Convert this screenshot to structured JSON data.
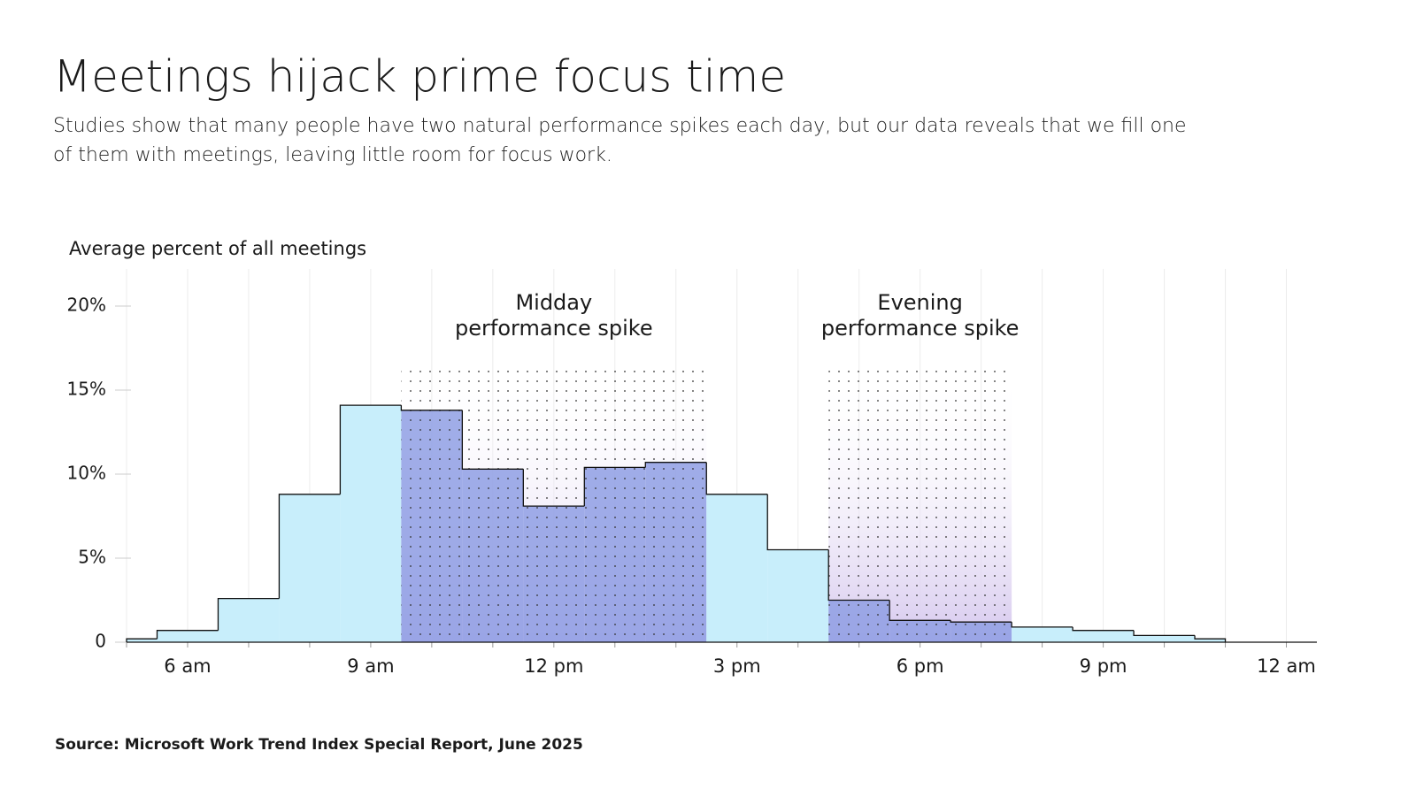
{
  "chart_data": {
    "type": "histogram",
    "title": "Meetings hijack prime focus time",
    "subtitle": "Studies show that many people have two natural performance spikes each day, but our data reveals that we fill one of them with meetings, leaving little room for focus work.",
    "y_label": "Average percent of all meetings",
    "source": "Source: Microsoft Work Trend Index Special Report, June 2025",
    "bins": [
      5,
      5.5,
      6.5,
      7.5,
      8.5,
      9.5,
      10.5,
      11.5,
      12.5,
      13.5,
      14.5,
      15.5,
      16.5,
      17.5,
      18.5,
      19.5,
      20.5,
      21.5,
      22.5,
      23
    ],
    "values": [
      0.2,
      0.7,
      2.6,
      8.8,
      14.1,
      13.8,
      10.3,
      8.1,
      10.4,
      10.7,
      8.8,
      5.5,
      2.5,
      1.3,
      1.2,
      0.9,
      0.7,
      0.4,
      0.2
    ],
    "color": "#c8eefb",
    "xlim": [
      5,
      24.5
    ],
    "xticks": [
      {
        "value": 6,
        "label": "6 am"
      },
      {
        "value": 9,
        "label": "9 am"
      },
      {
        "value": 12,
        "label": "12 pm"
      },
      {
        "value": 15,
        "label": "3 pm"
      },
      {
        "value": 18,
        "label": "6 pm"
      },
      {
        "value": 21,
        "label": "9 pm"
      },
      {
        "value": 24,
        "label": "12 am"
      }
    ],
    "xminorticks": [
      5,
      6,
      7,
      8,
      9,
      10,
      11,
      12,
      13,
      14,
      15,
      16,
      17,
      18,
      19,
      20,
      21,
      22,
      23,
      24
    ],
    "ylim": [
      0,
      22
    ],
    "yticks": [
      0,
      {
        "value": 5,
        "label": "5%"
      },
      {
        "value": 10,
        "label": "10%"
      },
      {
        "value": 15,
        "label": "15%"
      },
      {
        "value": 20,
        "label": "20%"
      }
    ],
    "grid": true,
    "highlights": [
      {
        "label": [
          "Midday",
          "performance spike"
        ],
        "start": 9.5,
        "end": 14.5,
        "top": 16.2,
        "color": "#d6c8ee",
        "bar_color": "#8f9fe4"
      },
      {
        "label": [
          "Evening",
          "performance spike"
        ],
        "start": 16.5,
        "end": 19.5,
        "top": 16.2,
        "color": "#d6c8ee",
        "bar_color": "#8f9fe4"
      }
    ]
  }
}
